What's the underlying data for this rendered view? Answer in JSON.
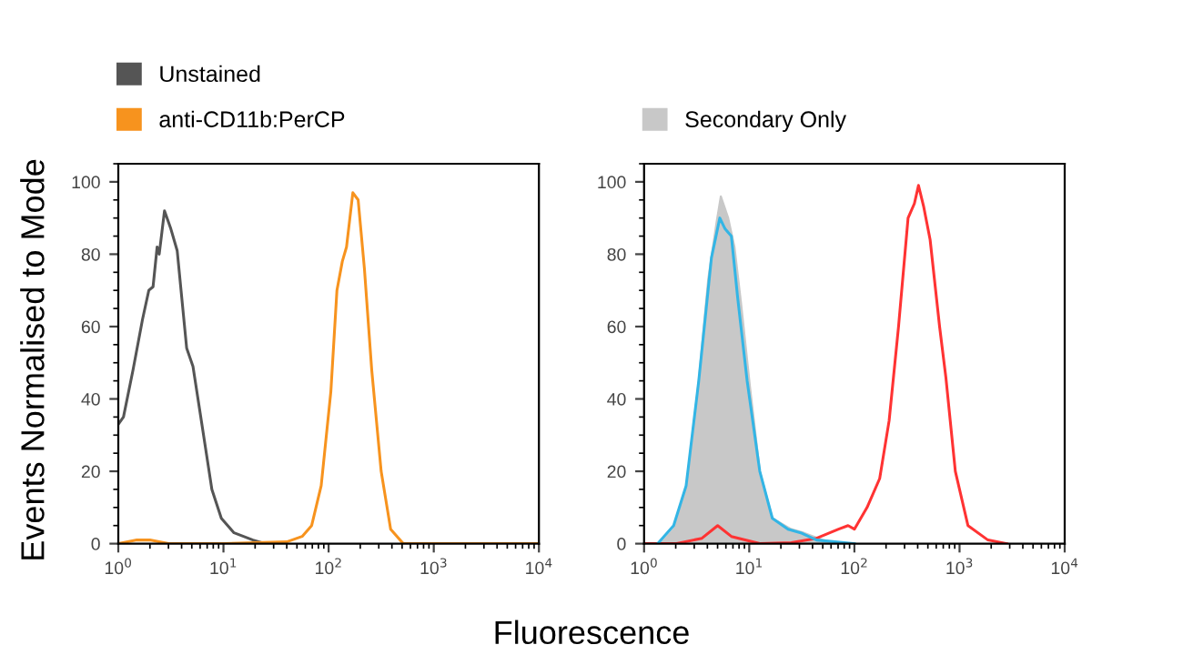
{
  "chart_data": [
    {
      "type": "line",
      "ylabel": "Events Normalised to Mode",
      "xlabel": "Fluorescence",
      "log": "x",
      "xlim": [
        1,
        10000
      ],
      "ylim": [
        0,
        105
      ],
      "xticks": [
        {
          "value": 1,
          "label": "10$^{0}$"
        },
        {
          "value": 10,
          "label": "10$^{1}$"
        },
        {
          "value": 100,
          "label": "10$^{2}$"
        },
        {
          "value": 1000,
          "label": "10$^{3}$"
        },
        {
          "value": 10000,
          "label": "10$^{4}$"
        }
      ],
      "yticks": [
        0,
        20,
        40,
        60,
        80,
        100
      ],
      "grid": false,
      "legend": "top left",
      "series": [
        {
          "name": "Unstained",
          "color": "#555555",
          "x": [
            1,
            1.12,
            1.38,
            1.7,
            1.95,
            2.14,
            2.34,
            2.45,
            2.75,
            3.16,
            3.63,
            4.47,
            5.13,
            6.31,
            7.76,
            9.55,
            12.6,
            19.1,
            25.1,
            31.6
          ],
          "values": [
            33,
            35,
            48,
            62,
            70,
            71,
            82,
            80,
            92,
            87,
            81,
            54,
            49,
            32,
            15,
            7,
            3,
            1,
            0,
            0
          ]
        },
        {
          "name": "anti-CD11b:PerCP",
          "color": "#f7931e",
          "x": [
            1,
            1.5,
            2,
            3,
            10,
            40,
            56,
            69,
            85,
            105,
            120,
            135,
            148,
            170,
            191,
            219,
            257,
            316,
            389,
            513,
            10000
          ],
          "values": [
            0,
            1,
            1,
            0,
            0,
            0.5,
            2,
            5,
            16,
            42,
            70,
            78,
            82,
            97,
            95,
            76,
            48,
            20,
            4,
            0,
            0
          ]
        }
      ]
    },
    {
      "type": "line",
      "log": "x",
      "xlim": [
        1,
        10000
      ],
      "ylim": [
        0,
        105
      ],
      "xticks": [
        {
          "value": 1,
          "label": "10$^{0}$"
        },
        {
          "value": 10,
          "label": "10$^{1}$"
        },
        {
          "value": 100,
          "label": "10$^{2}$"
        },
        {
          "value": 1000,
          "label": "10$^{3}$"
        },
        {
          "value": 10000,
          "label": "10$^{4}$"
        }
      ],
      "yticks": [
        0,
        20,
        40,
        60,
        80,
        100
      ],
      "grid": false,
      "legend": "top left",
      "series": [
        {
          "name": "Secondary Only",
          "type": "area",
          "color": "#c8c8c8",
          "x": [
            1.45,
            1.91,
            2.51,
            3.31,
            4.07,
            4.9,
            5.37,
            6.31,
            7.24,
            8.32,
            10.2,
            12.6,
            16.6,
            25.1,
            33.1,
            50.1,
            75.9
          ],
          "values": [
            0,
            4,
            15,
            45,
            73,
            89,
            96,
            90,
            82,
            67,
            43,
            20,
            7,
            4,
            3,
            1,
            0
          ]
        },
        {
          "color": "#ff3333",
          "x": [
            1,
            2.04,
            3.55,
            5.01,
            6.76,
            12.6,
            25.1,
            43.7,
            70.8,
            87.1,
            100,
            132,
            174,
            214,
            263,
            324,
            372,
            407,
            457,
            525,
            646,
            741,
            912,
            1202,
            1862,
            2818
          ],
          "values": [
            0,
            0,
            1.5,
            5,
            2,
            0,
            0.3,
            1.5,
            4,
            5,
            4,
            10,
            18,
            34,
            60,
            90,
            94,
            99,
            93,
            84,
            60,
            46,
            20,
            5,
            1,
            0
          ]
        },
        {
          "color": "#33b5e5",
          "x": [
            1.35,
            1.91,
            2.51,
            3.31,
            4.37,
            5.25,
            5.89,
            6.76,
            7.76,
            9.55,
            12.6,
            16.6,
            23.4,
            30.9,
            43.7,
            100
          ],
          "values": [
            0,
            5,
            16,
            45,
            79,
            90,
            87,
            85,
            68,
            45,
            20,
            7,
            4,
            3,
            1,
            0
          ]
        }
      ]
    }
  ]
}
